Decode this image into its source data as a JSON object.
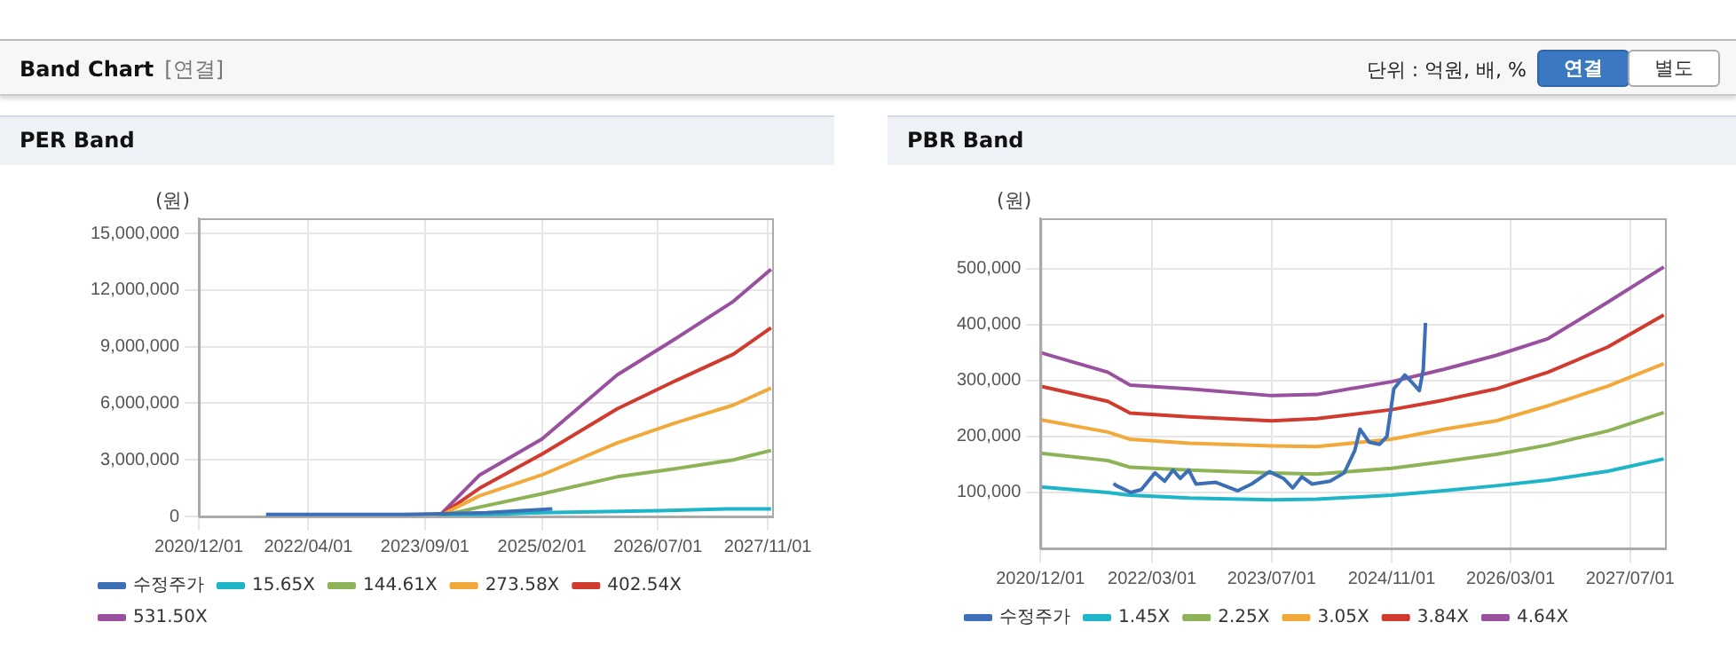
{
  "chart_data": [
    {
      "type": "other",
      "title": "Band Chart",
      "annotations": [
        "[연결]",
        "단위 : 억원, 배, %",
        "연결",
        "별도"
      ]
    },
    {
      "type": "line",
      "title": "PER Band",
      "ylabel": "(원)",
      "xlim": [
        "2020-12-01",
        "2027-11-20"
      ],
      "ylim": [
        0,
        15800000
      ],
      "xticks": [
        {
          "value": "2020-12-01",
          "label": "2020/12/01"
        },
        {
          "value": "2022-04-01",
          "label": "2022/04/01"
        },
        {
          "value": "2023-09-01",
          "label": "2023/09/01"
        },
        {
          "value": "2025-02-01",
          "label": "2025/02/01"
        },
        {
          "value": "2026-07-01",
          "label": "2026/07/01"
        },
        {
          "value": "2027-11-01",
          "label": "2027/11/01"
        }
      ],
      "yticks": [
        0,
        {
          "value": 3000000,
          "label": "3,000,000"
        },
        {
          "value": 6000000,
          "label": "6,000,000"
        },
        {
          "value": 9000000,
          "label": "9,000,000"
        },
        {
          "value": 12000000,
          "label": "12,000,000"
        },
        {
          "value": 15000000,
          "label": "15,000,000"
        }
      ],
      "grid": true,
      "legend": "bottom",
      "marker": "none",
      "line_style": "solid",
      "series": [
        {
          "name": "수정주가",
          "color": "#3d6fb6",
          "x": [
            "2021-09-25",
            "2023-06-01",
            "2024-06-01",
            "2024-11-01",
            "2025-03-19"
          ],
          "values": [
            100000,
            100000,
            200000,
            300000,
            400000
          ]
        },
        {
          "name": "15.65X",
          "color": "#1fb5c8",
          "x": [
            "2023-11-01",
            "2024-06-01",
            "2025-02-01",
            "2026-07-01",
            "2027-05-01",
            "2027-11-15"
          ],
          "values": [
            100000,
            100000,
            200000,
            300000,
            400000,
            400000
          ]
        },
        {
          "name": "144.61X",
          "color": "#8db356",
          "x": [
            "2023-11-01",
            "2024-05-01",
            "2025-02-01",
            "2026-01-01",
            "2026-09-01",
            "2027-06-01",
            "2027-11-15"
          ],
          "values": [
            0,
            500000,
            1200000,
            2100000,
            2500000,
            3000000,
            3500000
          ]
        },
        {
          "name": "273.58X",
          "color": "#f2a93b",
          "x": [
            "2023-11-01",
            "2024-05-01",
            "2025-02-01",
            "2026-01-01",
            "2026-09-01",
            "2027-06-01",
            "2027-11-15"
          ],
          "values": [
            0,
            1100000,
            2200000,
            3900000,
            4900000,
            5900000,
            6800000
          ]
        },
        {
          "name": "402.54X",
          "color": "#d03a2f",
          "x": [
            "2023-11-01",
            "2024-05-01",
            "2025-02-01",
            "2026-01-01",
            "2026-09-01",
            "2027-06-01",
            "2027-11-15"
          ],
          "values": [
            0,
            1500000,
            3300000,
            5700000,
            7100000,
            8600000,
            10000000
          ]
        },
        {
          "name": "531.50X",
          "color": "#98509f",
          "x": [
            "2023-11-01",
            "2024-05-01",
            "2025-02-01",
            "2026-01-01",
            "2026-09-01",
            "2027-06-01",
            "2027-11-15"
          ],
          "values": [
            0,
            2200000,
            4100000,
            7500000,
            9300000,
            11400000,
            13100000
          ]
        }
      ]
    },
    {
      "type": "line",
      "title": "PBR Band",
      "ylabel": "(원)",
      "xlim": [
        "2020-12-01",
        "2027-11-20"
      ],
      "ylim": [
        0,
        590000
      ],
      "xticks": [
        {
          "value": "2020-12-01",
          "label": "2020/12/01"
        },
        {
          "value": "2022-03-01",
          "label": "2022/03/01"
        },
        {
          "value": "2023-07-01",
          "label": "2023/07/01"
        },
        {
          "value": "2024-11-01",
          "label": "2024/11/01"
        },
        {
          "value": "2026-03-01",
          "label": "2026/03/01"
        },
        {
          "value": "2027-07-01",
          "label": "2027/07/01"
        }
      ],
      "yticks": [
        {
          "value": 100000,
          "label": "100,000"
        },
        {
          "value": 200000,
          "label": "200,000"
        },
        {
          "value": 300000,
          "label": "300,000"
        },
        {
          "value": 400000,
          "label": "400,000"
        },
        {
          "value": 500000,
          "label": "500,000"
        }
      ],
      "grid": true,
      "legend": "bottom",
      "marker": "none",
      "line_style": "solid",
      "series": [
        {
          "name": "수정주가",
          "color": "#3d6fb6",
          "x": [
            "2021-09-25",
            "2021-10-07",
            "2021-12-04",
            "2022-01-16",
            "2022-03-13",
            "2022-04-21",
            "2022-05-25",
            "2022-06-24",
            "2022-07-28",
            "2022-08-27",
            "2022-11-16",
            "2023-02-13",
            "2023-04-10",
            "2023-06-22",
            "2023-08-19",
            "2023-09-25",
            "2023-11-01",
            "2023-12-13",
            "2024-02-24",
            "2024-04-22",
            "2024-06-04",
            "2024-06-25",
            "2024-08-01",
            "2024-09-13",
            "2024-10-13",
            "2024-11-10",
            "2024-12-25",
            "2025-01-22",
            "2025-02-22",
            "2025-03-10",
            "2025-03-19"
          ],
          "values": [
            116000,
            112000,
            100000,
            105000,
            135000,
            120000,
            140000,
            125000,
            140000,
            115000,
            118000,
            103000,
            115000,
            137000,
            125000,
            108000,
            128000,
            115000,
            120000,
            135000,
            175000,
            213000,
            190000,
            186000,
            200000,
            285000,
            310000,
            297000,
            282000,
            320000,
            403000
          ]
        },
        {
          "name": "1.45X",
          "color": "#1fb5c8",
          "x": [
            "2020-12-01",
            "2021-09-01",
            "2021-12-01",
            "2022-08-01",
            "2023-07-01",
            "2024-01-01",
            "2024-11-01",
            "2025-06-01",
            "2026-01-01",
            "2026-08-01",
            "2027-04-01",
            "2027-11-15"
          ],
          "values": [
            110000,
            100000,
            95000,
            90000,
            87000,
            88000,
            95000,
            103000,
            112000,
            122000,
            138000,
            160000
          ]
        },
        {
          "name": "2.25X",
          "color": "#8db356",
          "x": [
            "2020-12-01",
            "2021-09-01",
            "2021-12-01",
            "2022-08-01",
            "2023-07-01",
            "2024-01-01",
            "2024-11-01",
            "2025-06-01",
            "2026-01-01",
            "2026-08-01",
            "2027-04-01",
            "2027-11-15"
          ],
          "values": [
            170000,
            157000,
            145000,
            140000,
            135000,
            133000,
            143000,
            155000,
            168000,
            185000,
            210000,
            243000
          ]
        },
        {
          "name": "3.05X",
          "color": "#f2a93b",
          "x": [
            "2020-12-01",
            "2021-09-01",
            "2021-12-01",
            "2022-08-01",
            "2023-07-01",
            "2024-01-01",
            "2024-11-01",
            "2025-06-01",
            "2026-01-01",
            "2026-08-01",
            "2027-04-01",
            "2027-11-15"
          ],
          "values": [
            230000,
            208000,
            195000,
            188000,
            183000,
            182000,
            195000,
            213000,
            228000,
            255000,
            290000,
            330000
          ]
        },
        {
          "name": "3.84X",
          "color": "#d03a2f",
          "x": [
            "2020-12-01",
            "2021-09-01",
            "2021-12-01",
            "2022-08-01",
            "2023-07-01",
            "2024-01-01",
            "2024-11-01",
            "2025-06-01",
            "2026-01-01",
            "2026-08-01",
            "2027-04-01",
            "2027-11-15"
          ],
          "values": [
            290000,
            263000,
            242000,
            235000,
            228000,
            232000,
            248000,
            265000,
            285000,
            315000,
            360000,
            417000
          ]
        },
        {
          "name": "4.64X",
          "color": "#98509f",
          "x": [
            "2020-12-01",
            "2021-09-01",
            "2021-12-01",
            "2022-08-01",
            "2023-07-01",
            "2024-01-01",
            "2024-11-01",
            "2025-06-01",
            "2026-01-01",
            "2026-08-01",
            "2027-04-01",
            "2027-11-15"
          ],
          "values": [
            350000,
            315000,
            292000,
            285000,
            273000,
            275000,
            298000,
            320000,
            345000,
            375000,
            440000,
            503000
          ]
        }
      ]
    }
  ]
}
